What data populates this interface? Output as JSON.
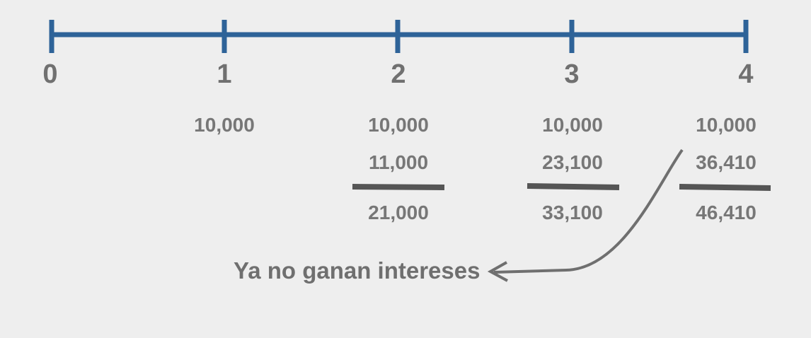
{
  "timeline": {
    "periods": [
      "0",
      "1",
      "2",
      "3",
      "4"
    ],
    "line_color": "#2e6398"
  },
  "columns": [
    {
      "period": "1",
      "deposit": "10,000"
    },
    {
      "period": "2",
      "deposit": "10,000",
      "carried": "11,000",
      "total": "21,000"
    },
    {
      "period": "3",
      "deposit": "10,000",
      "carried": "23,100",
      "total": "33,100"
    },
    {
      "period": "4",
      "deposit": "10,000",
      "carried": "36,410",
      "total": "46,410"
    }
  ],
  "annotation": {
    "text": "Ya no ganan intereses",
    "color": "#6f6f6f"
  }
}
